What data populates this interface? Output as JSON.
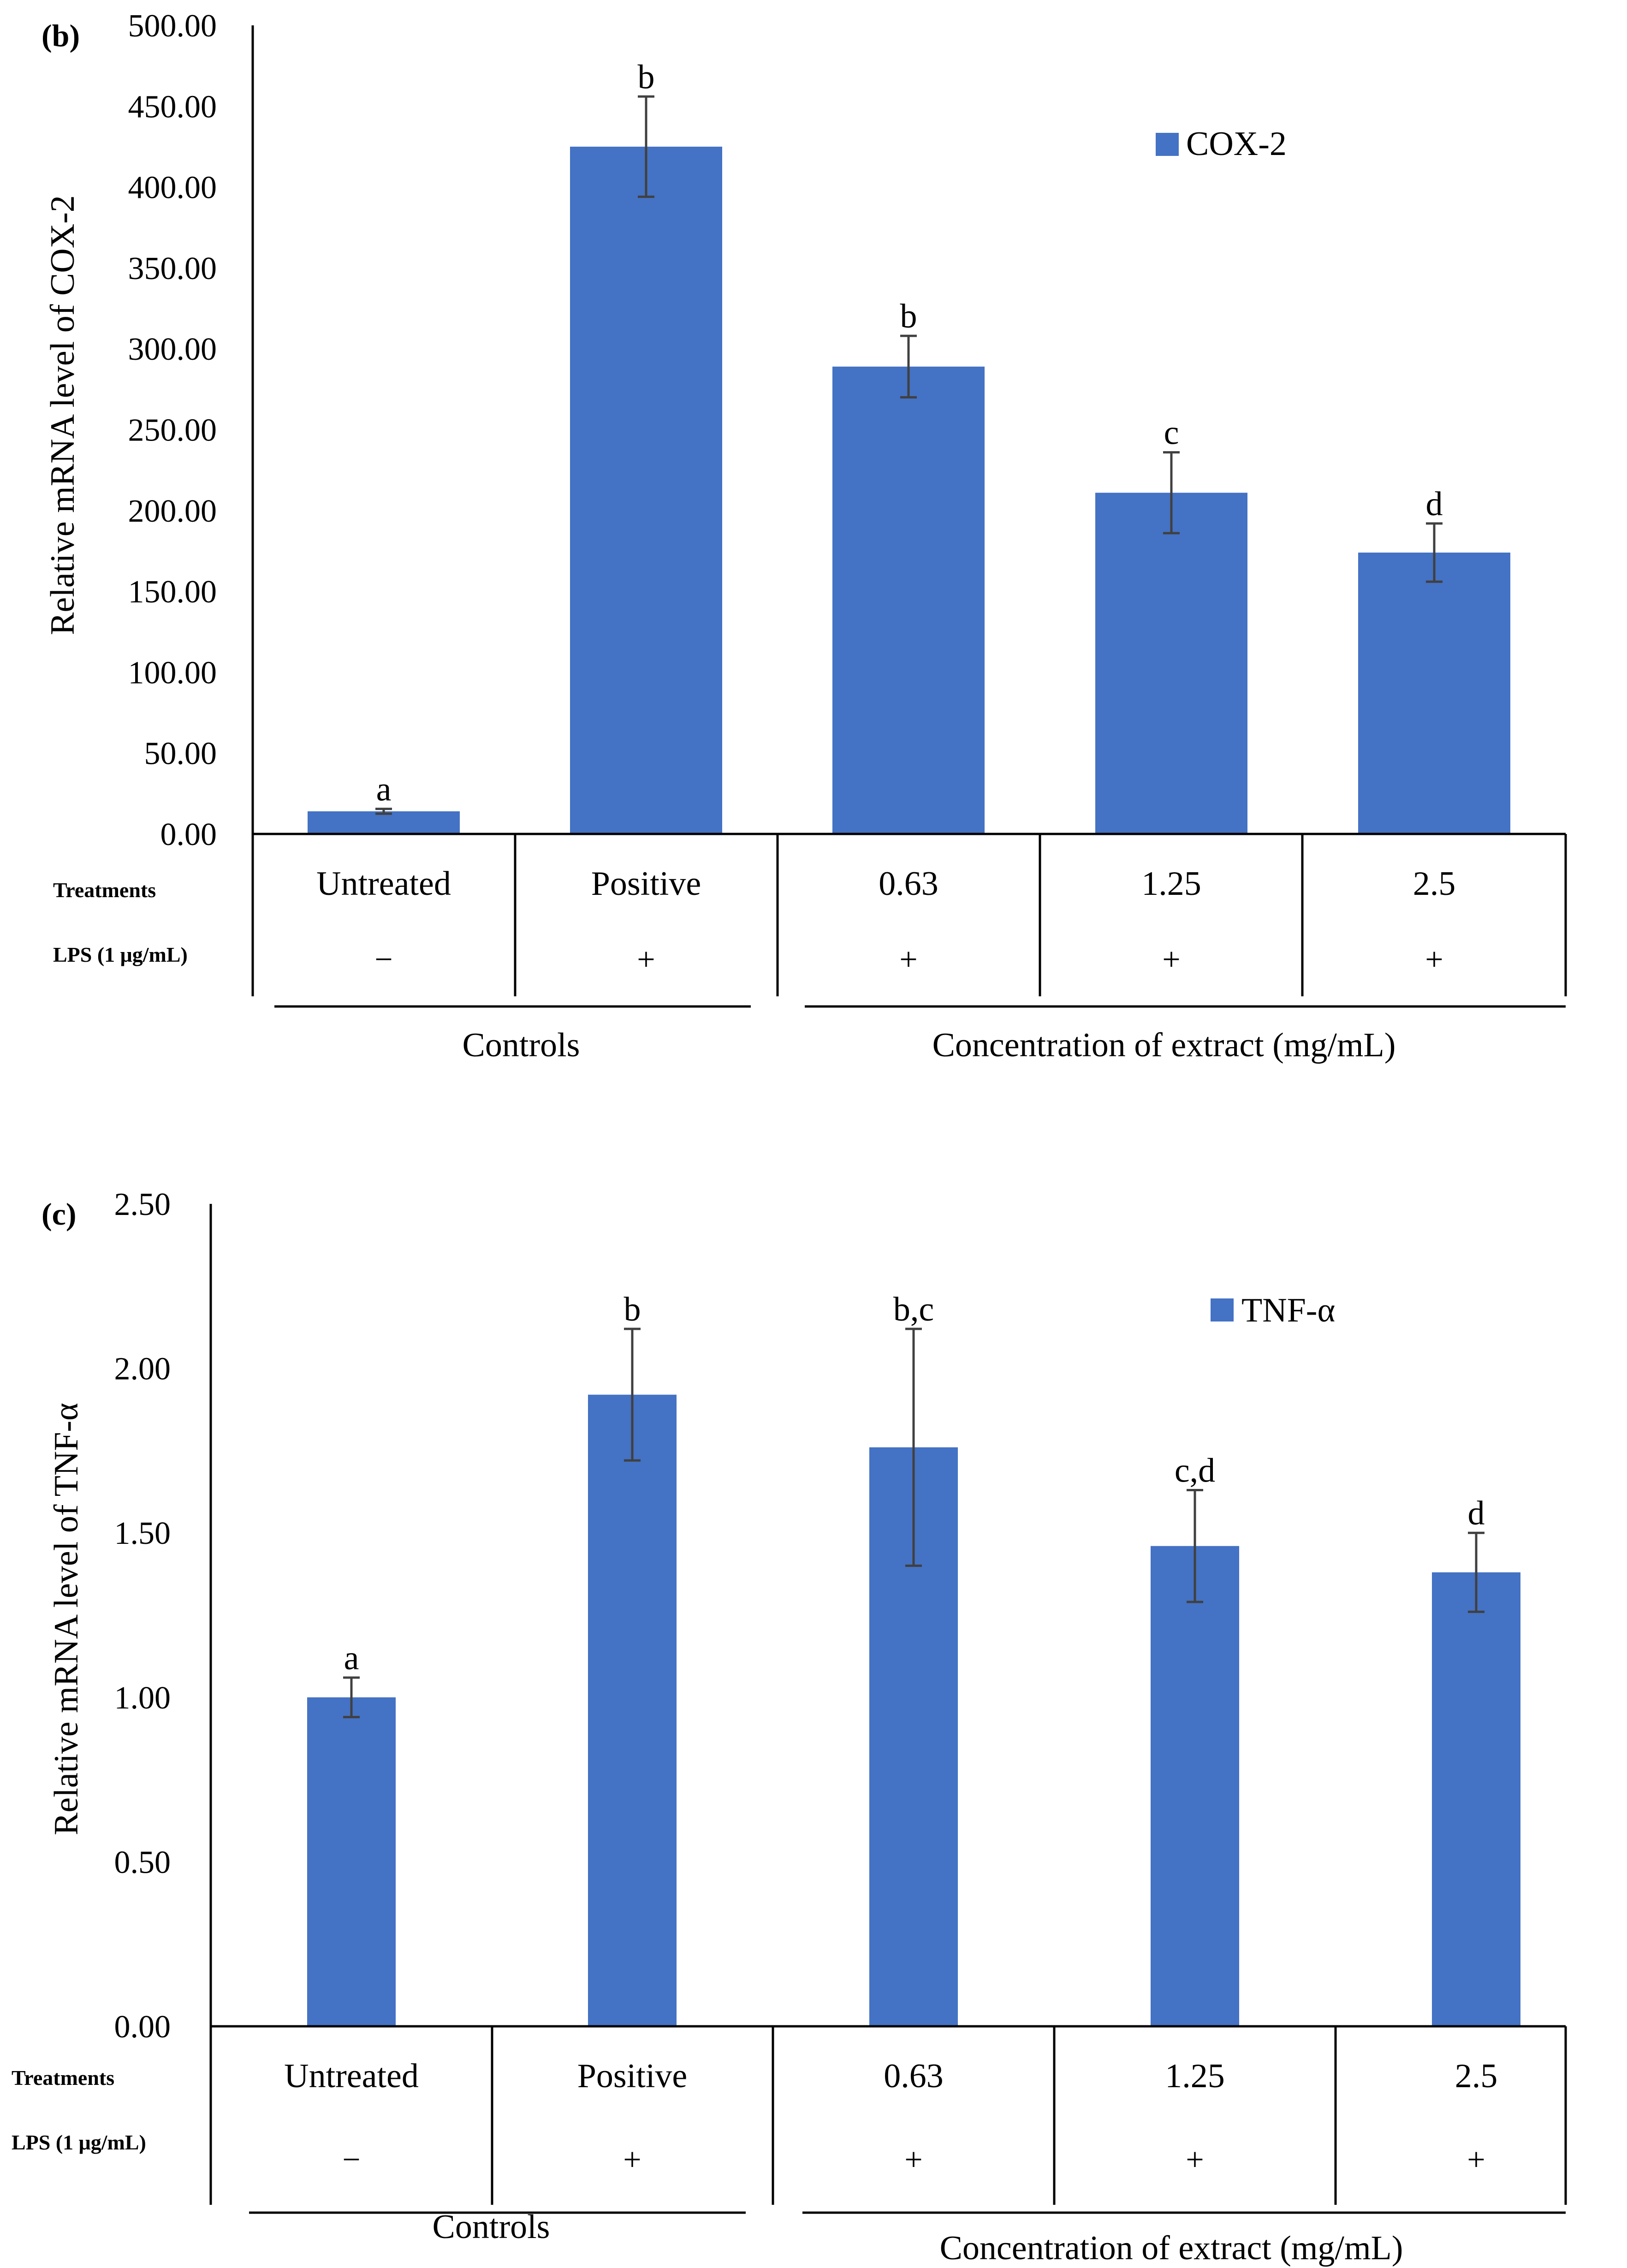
{
  "colors": {
    "bar": "#4472c4",
    "axis": "#000000",
    "error": "#404040",
    "background": "#ffffff"
  },
  "chart_data": [
    {
      "type": "bar",
      "panel_label": "(b)",
      "ylabel": "Relative mRNA level of COX-2",
      "ylim": [
        0,
        500
      ],
      "yticks": [
        "0.00",
        "50.00",
        "100.00",
        "150.00",
        "200.00",
        "250.00",
        "300.00",
        "350.00",
        "400.00",
        "450.00",
        "500.00"
      ],
      "legend": "COX-2",
      "legend_position": "top-right",
      "categories": [
        "Untreated",
        "Positive",
        "0.63",
        "1.25",
        "2.5"
      ],
      "values": [
        14,
        425,
        289,
        211,
        174
      ],
      "errors": [
        1.5,
        31,
        19,
        25,
        18
      ],
      "letters": [
        "a",
        "b",
        "b",
        "c",
        "d"
      ],
      "row_labels": {
        "treatments": "Treatments",
        "lps": "LPS (1 μg/mL)"
      },
      "lps": [
        "−",
        "+",
        "+",
        "+",
        "+"
      ],
      "groups": [
        "Controls",
        "Concentration of extract (mg/mL)"
      ]
    },
    {
      "type": "bar",
      "panel_label": "(c)",
      "ylabel": "Relative mRNA level of TNF-α",
      "ylim": [
        0,
        2.5
      ],
      "yticks": [
        "0.00",
        "0.50",
        "1.00",
        "1.50",
        "2.00",
        "2.50"
      ],
      "legend": "TNF-α",
      "legend_position": "top-right",
      "categories": [
        "Untreated",
        "Positive",
        "0.63",
        "1.25",
        "2.5"
      ],
      "values": [
        1.0,
        1.92,
        1.76,
        1.46,
        1.38
      ],
      "errors": [
        0.06,
        0.2,
        0.36,
        0.17,
        0.12
      ],
      "letters": [
        "a",
        "b",
        "b,c",
        "c,d",
        "d"
      ],
      "row_labels": {
        "treatments": "Treatments",
        "lps": "LPS (1 μg/mL)"
      },
      "lps": [
        "−",
        "+",
        "+",
        "+",
        "+"
      ],
      "groups": [
        "Controls",
        "Concentration of extract (mg/mL)"
      ]
    }
  ]
}
